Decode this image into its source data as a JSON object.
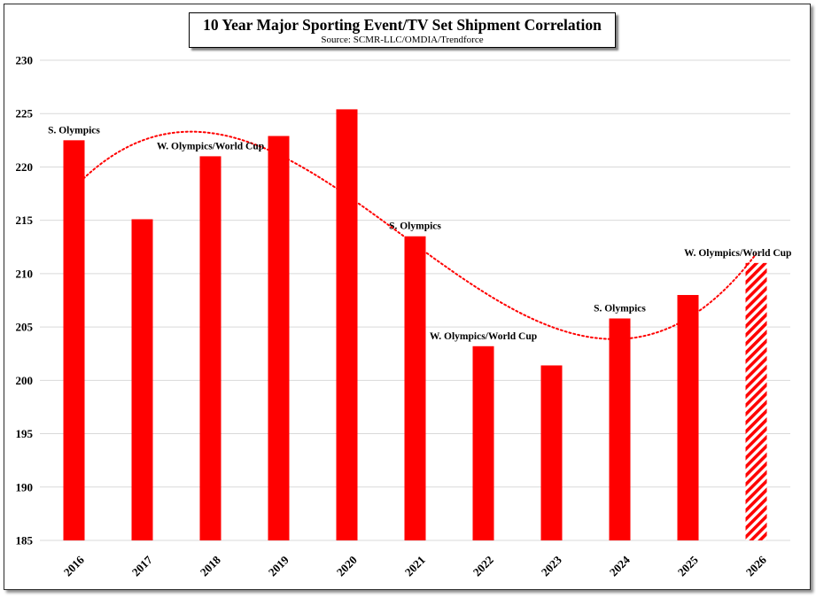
{
  "chart_data": {
    "type": "bar",
    "title": "10 Year Major Sporting Event/TV Set Shipment Correlation",
    "subtitle": "Source: SCMR-LLC/OMDIA/Trendforce",
    "xlabel": "",
    "ylabel": "",
    "ylim": [
      185,
      230
    ],
    "yticks": [
      185,
      190,
      195,
      200,
      205,
      210,
      215,
      220,
      225,
      230
    ],
    "grid": true,
    "categories": [
      "2016",
      "2017",
      "2018",
      "2019",
      "2020",
      "2021",
      "2022",
      "2023",
      "2024",
      "2025",
      "2026"
    ],
    "values": [
      222.5,
      215.1,
      221.0,
      222.9,
      225.4,
      213.5,
      203.2,
      201.4,
      205.8,
      208.0,
      211.0
    ],
    "forecast": [
      false,
      false,
      false,
      false,
      false,
      false,
      false,
      false,
      false,
      false,
      true
    ],
    "annotations": [
      {
        "category": "2016",
        "text": "S. Olympics"
      },
      {
        "category": "2018",
        "text": "W. Olympics/World Cup"
      },
      {
        "category": "2021",
        "text": "S. Olympics"
      },
      {
        "category": "2022",
        "text": "W. Olympics/World Cup"
      },
      {
        "category": "2024",
        "text": "S. Olympics"
      },
      {
        "category": "2026",
        "text": "W. Olympics/World Cup"
      }
    ],
    "trendline": {
      "type": "polynomial",
      "style": "dotted"
    },
    "colors": {
      "bar": "#ff0000",
      "trend": "#ff0000",
      "grid": "#d9d9d9"
    }
  }
}
